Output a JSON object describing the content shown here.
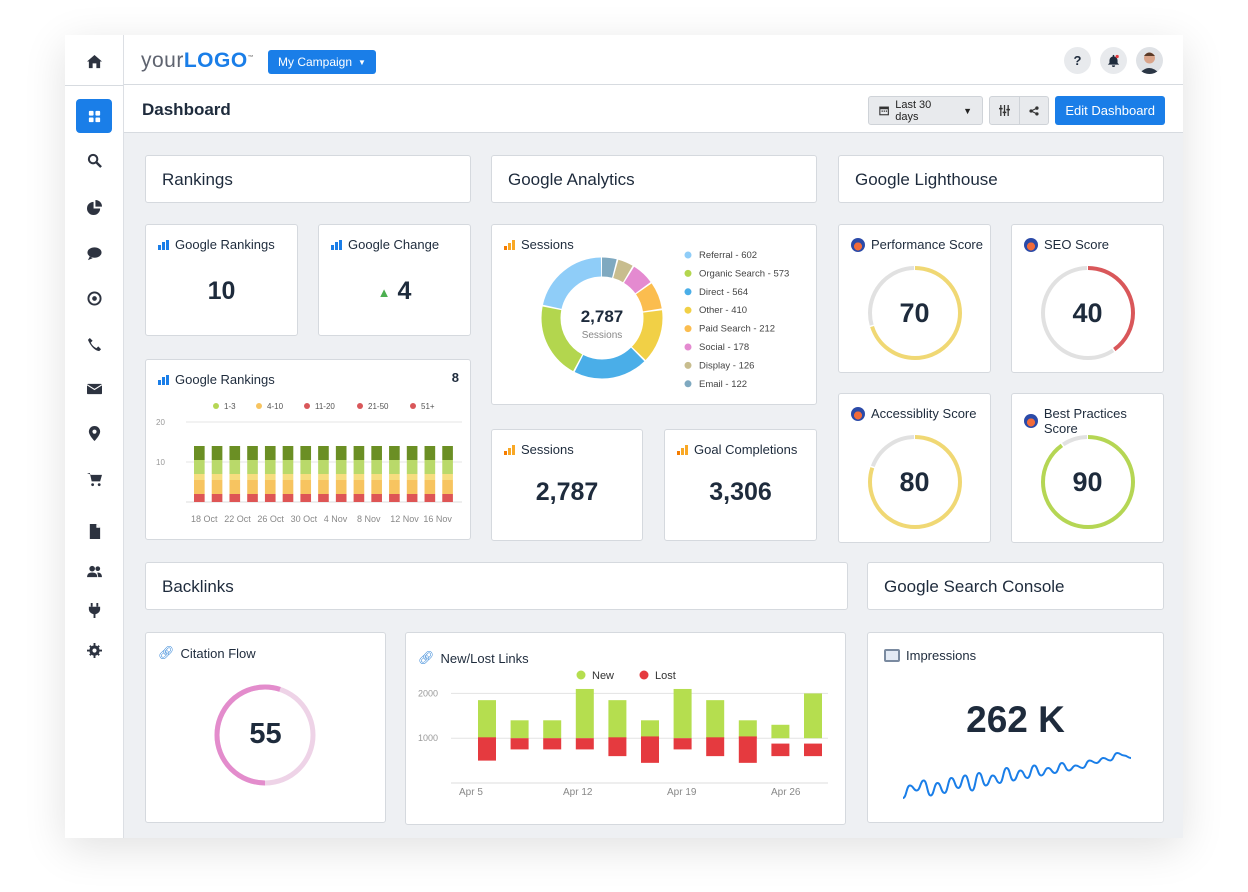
{
  "sidebar": {
    "items": [
      "home",
      "dashboard",
      "search",
      "reports",
      "chat",
      "target",
      "phone",
      "email",
      "location",
      "cart",
      "document",
      "users",
      "integrations",
      "settings"
    ],
    "active": "dashboard"
  },
  "topbar": {
    "logo_light": "your",
    "logo_bold": "LOGO",
    "logo_tm": "™",
    "campaign": "My Campaign",
    "help": "?"
  },
  "subheader": {
    "title": "Dashboard",
    "date_range": "Last 30 days",
    "edit": "Edit Dashboard"
  },
  "sections": {
    "rankings": "Rankings",
    "analytics": "Google Analytics",
    "lighthouse": "Google Lighthouse",
    "backlinks": "Backlinks",
    "console": "Google Search Console"
  },
  "widgets": {
    "google_rankings": {
      "title": "Google Rankings",
      "value": "10"
    },
    "google_change": {
      "title": "Google Change",
      "value": "4",
      "direction": "up"
    },
    "rankings_chart": {
      "title": "Google Rankings",
      "count": "8"
    },
    "sessions_donut": {
      "title": "Sessions",
      "total": "2,787",
      "total_label": "Sessions"
    },
    "sessions": {
      "title": "Sessions",
      "value": "2,787"
    },
    "goals": {
      "title": "Goal Completions",
      "value": "3,306"
    },
    "performance": {
      "title": "Performance Score",
      "value": "70",
      "color": "#f0d874"
    },
    "seo": {
      "title": "SEO Score",
      "value": "40",
      "color": "#d9575a"
    },
    "accessibility": {
      "title": "Accessiblity Score",
      "value": "80",
      "color": "#f0d874"
    },
    "best_practices": {
      "title": "Best Practices Score",
      "value": "90",
      "color": "#b5d654"
    },
    "citation": {
      "title": "Citation Flow",
      "value": "55",
      "color": "#e38ccc"
    },
    "links": {
      "title": "New/Lost Links"
    },
    "impressions": {
      "title": "Impressions",
      "value": "262 K"
    }
  },
  "chart_data": [
    {
      "type": "bar",
      "stacked": true,
      "title": "Google Rankings",
      "categories": [
        "",
        "18 Oct",
        "",
        "22 Oct",
        "",
        "26 Oct",
        "",
        "30 Oct",
        "",
        "4 Nov",
        "",
        "8 Nov",
        "",
        "12 Nov",
        "16 Nov"
      ],
      "x_labels": [
        "18 Oct",
        "22 Oct",
        "26 Oct",
        "30 Oct",
        "4 Nov",
        "8 Nov",
        "12 Nov",
        "16 Nov"
      ],
      "legend": [
        {
          "name": "1-3",
          "color": "#b5d654"
        },
        {
          "name": "4-10",
          "color": "#f7c460"
        },
        {
          "name": "11-20",
          "color": "#d9575a"
        },
        {
          "name": "21-50",
          "color": "#d9575a"
        },
        {
          "name": "51+",
          "color": "#d9575a"
        }
      ],
      "stack_colors": [
        "#de5555",
        "#f7c460",
        "#f6dd7f",
        "#b9d96a",
        "#6b8f24"
      ],
      "stack_values": [
        2,
        3.5,
        1.5,
        3.5,
        3.5
      ],
      "ylim": [
        0,
        20
      ],
      "yticks": [
        10,
        20
      ],
      "grid": true
    },
    {
      "type": "pie",
      "donut": true,
      "title": "Sessions",
      "total": 2787,
      "slices": [
        {
          "name": "Referral",
          "value": 602,
          "color": "#8fcdf8"
        },
        {
          "name": "Organic Search",
          "value": 573,
          "color": "#b3d64e"
        },
        {
          "name": "Direct",
          "value": 564,
          "color": "#4aaee8"
        },
        {
          "name": "Other",
          "value": 410,
          "color": "#f1d046"
        },
        {
          "name": "Paid Search",
          "value": 212,
          "color": "#fbbd4f"
        },
        {
          "name": "Social",
          "value": 178,
          "color": "#e48ad0"
        },
        {
          "name": "Display",
          "value": 126,
          "color": "#c8bd8e"
        },
        {
          "name": "Email",
          "value": 122,
          "color": "#7fa9c0"
        }
      ],
      "legend": "right"
    },
    {
      "type": "bar",
      "title": "New/Lost Links",
      "x_labels": [
        "Apr 5",
        "Apr 12",
        "Apr 19",
        "Apr 26"
      ],
      "series": [
        {
          "name": "New",
          "color": "#b5de4f",
          "ranges": [
            [
              1000,
              1850
            ],
            [
              1000,
              1400
            ],
            [
              1000,
              1400
            ],
            [
              1000,
              2100
            ],
            [
              1000,
              1850
            ],
            [
              1000,
              1400
            ],
            [
              1000,
              2100
            ],
            [
              1000,
              1850
            ],
            [
              1000,
              1400
            ],
            [
              1000,
              1300
            ],
            [
              1000,
              2000
            ]
          ]
        },
        {
          "name": "Lost",
          "color": "#e53a3f",
          "ranges": [
            [
              500,
              1020
            ],
            [
              750,
              1000
            ],
            [
              750,
              1000
            ],
            [
              750,
              1000
            ],
            [
              600,
              1020
            ],
            [
              450,
              1040
            ],
            [
              750,
              1000
            ],
            [
              600,
              1020
            ],
            [
              450,
              1040
            ],
            [
              600,
              880
            ],
            [
              600,
              880
            ]
          ]
        }
      ],
      "ylim": [
        0,
        2300
      ],
      "yticks": [
        1000,
        2000
      ],
      "legend": "top",
      "grid": true
    },
    {
      "type": "line",
      "title": "Impressions",
      "sparkline": true,
      "color": "#1a7ee8",
      "values": [
        3,
        8,
        6,
        10,
        4,
        9,
        5,
        11,
        7,
        12,
        6,
        13,
        8,
        12,
        9,
        15,
        10,
        14,
        11,
        16,
        12,
        15,
        13,
        17,
        14,
        16,
        15,
        18,
        17,
        19,
        18,
        21,
        20,
        19
      ]
    }
  ]
}
